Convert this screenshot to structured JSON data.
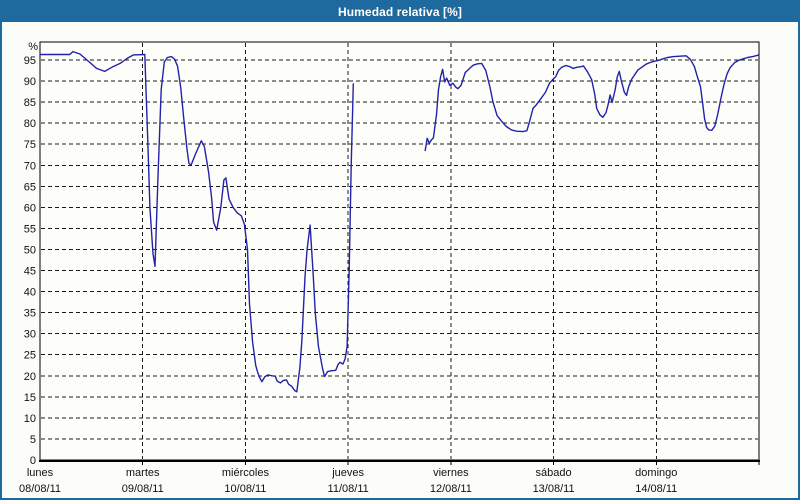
{
  "header": {
    "title": "Humedad relativa [%]"
  },
  "colors": {
    "header_bg": "#1e6a9e",
    "frame_border": "#1e6a9e",
    "grid": "#1a1a1a",
    "axis": "#000000",
    "label": "#111111",
    "plot_bg": "#fdfdfa",
    "page_bg": "#fcfcf8"
  },
  "chart_data": {
    "type": "line",
    "title": "Humedad relativa [%]",
    "ylabel": "%",
    "xlabel": "",
    "ylim": [
      0,
      99.5
    ],
    "y_ticks": [
      0,
      5,
      10,
      15,
      20,
      25,
      30,
      35,
      40,
      45,
      50,
      55,
      60,
      65,
      70,
      75,
      80,
      85,
      90,
      95
    ],
    "x_range_days": [
      0,
      7
    ],
    "grid": "dashed horizontal and vertical, black on white",
    "legend": "none",
    "line_color": "#2222aa",
    "x_days": [
      {
        "name": "lunes",
        "date": "08/08/11"
      },
      {
        "name": "martes",
        "date": "09/08/11"
      },
      {
        "name": "miércoles",
        "date": "10/08/11"
      },
      {
        "name": "jueves",
        "date": "11/08/11"
      },
      {
        "name": "viernes",
        "date": "12/08/11"
      },
      {
        "name": "sábado",
        "date": "13/08/11"
      },
      {
        "name": "domingo",
        "date": "14/08/11"
      }
    ],
    "series": [
      {
        "name": "Humedad relativa",
        "note": "x = days since lunes 08/08/11 00:00, y = %; gap (missing data) between day 3.05 and 3.75",
        "segments": [
          [
            [
              0,
              96.3
            ],
            [
              0.29,
              96.3
            ],
            [
              0.32,
              97
            ],
            [
              0.39,
              96.4
            ],
            [
              0.49,
              94.3
            ],
            [
              0.55,
              93
            ],
            [
              0.63,
              92.3
            ],
            [
              0.71,
              93.4
            ],
            [
              0.78,
              94.2
            ],
            [
              0.85,
              95.4
            ],
            [
              0.91,
              96.2
            ],
            [
              1.02,
              96.3
            ],
            [
              1.05,
              75
            ],
            [
              1.07,
              60
            ],
            [
              1.1,
              49
            ],
            [
              1.12,
              46
            ],
            [
              1.15,
              68
            ],
            [
              1.18,
              88
            ],
            [
              1.21,
              94.5
            ],
            [
              1.24,
              95.6
            ],
            [
              1.28,
              95.8
            ],
            [
              1.31,
              95.2
            ],
            [
              1.34,
              93.5
            ],
            [
              1.37,
              88.5
            ],
            [
              1.4,
              81
            ],
            [
              1.43,
              74
            ],
            [
              1.45,
              70.5
            ],
            [
              1.47,
              70
            ],
            [
              1.52,
              73
            ],
            [
              1.57,
              75.8
            ],
            [
              1.6,
              74.5
            ],
            [
              1.64,
              68.5
            ],
            [
              1.67,
              62.5
            ],
            [
              1.69,
              56.5
            ],
            [
              1.72,
              54.6
            ],
            [
              1.76,
              60
            ],
            [
              1.79,
              66.5
            ],
            [
              1.81,
              67
            ],
            [
              1.84,
              62
            ],
            [
              1.88,
              60
            ],
            [
              1.92,
              58.7
            ],
            [
              1.96,
              58
            ],
            [
              1.99,
              56
            ],
            [
              2.02,
              50
            ],
            [
              2.04,
              37
            ],
            [
              2.07,
              28
            ],
            [
              2.1,
              22.5
            ],
            [
              2.12,
              20.7
            ],
            [
              2.14,
              19.5
            ],
            [
              2.16,
              18.6
            ],
            [
              2.19,
              19.8
            ],
            [
              2.22,
              20.2
            ],
            [
              2.26,
              20
            ],
            [
              2.29,
              19.9
            ],
            [
              2.31,
              18.7
            ],
            [
              2.34,
              18.3
            ],
            [
              2.37,
              18.9
            ],
            [
              2.4,
              19
            ],
            [
              2.42,
              18
            ],
            [
              2.45,
              17.5
            ],
            [
              2.48,
              16.5
            ],
            [
              2.5,
              16.2
            ],
            [
              2.53,
              22
            ],
            [
              2.55,
              28.5
            ],
            [
              2.58,
              43.5
            ],
            [
              2.6,
              50
            ],
            [
              2.63,
              55.8
            ],
            [
              2.66,
              44
            ],
            [
              2.68,
              34.9
            ],
            [
              2.71,
              27
            ],
            [
              2.75,
              21.8
            ],
            [
              2.77,
              19.8
            ],
            [
              2.8,
              21
            ],
            [
              2.84,
              21.2
            ],
            [
              2.88,
              21.3
            ],
            [
              2.9,
              22.6
            ],
            [
              2.92,
              23.2
            ],
            [
              2.95,
              22.8
            ],
            [
              2.97,
              24
            ],
            [
              2.99,
              27
            ],
            [
              3.01,
              45
            ],
            [
              3.03,
              70
            ],
            [
              3.05,
              89.3
            ]
          ],
          [
            [
              3.75,
              73.5
            ],
            [
              3.77,
              76.4
            ],
            [
              3.79,
              75.2
            ],
            [
              3.81,
              76
            ],
            [
              3.83,
              76.5
            ],
            [
              3.86,
              82
            ],
            [
              3.88,
              88
            ],
            [
              3.9,
              91
            ],
            [
              3.92,
              92.8
            ],
            [
              3.94,
              89.8
            ],
            [
              3.96,
              90.7
            ],
            [
              3.99,
              89
            ],
            [
              4.02,
              89.5
            ],
            [
              4.05,
              88.5
            ],
            [
              4.07,
              88.2
            ],
            [
              4.1,
              89
            ],
            [
              4.14,
              92
            ],
            [
              4.19,
              93.2
            ],
            [
              4.22,
              93.8
            ],
            [
              4.26,
              94.1
            ],
            [
              4.3,
              94.2
            ],
            [
              4.34,
              92.5
            ],
            [
              4.38,
              88.6
            ],
            [
              4.41,
              85
            ],
            [
              4.45,
              81.8
            ],
            [
              4.5,
              80.3
            ],
            [
              4.54,
              79.2
            ],
            [
              4.59,
              78.4
            ],
            [
              4.64,
              78.1
            ],
            [
              4.7,
              78
            ],
            [
              4.74,
              78.2
            ],
            [
              4.77,
              80.7
            ],
            [
              4.8,
              83.5
            ],
            [
              4.83,
              84.3
            ],
            [
              4.87,
              85.6
            ],
            [
              4.92,
              87.3
            ],
            [
              4.96,
              89.5
            ],
            [
              4.99,
              90.3
            ],
            [
              5.02,
              91
            ],
            [
              5.05,
              92.6
            ],
            [
              5.08,
              93.3
            ],
            [
              5.12,
              93.7
            ],
            [
              5.16,
              93.4
            ],
            [
              5.19,
              93
            ],
            [
              5.23,
              93.3
            ],
            [
              5.27,
              93.4
            ],
            [
              5.29,
              93.6
            ],
            [
              5.33,
              92.2
            ],
            [
              5.37,
              90.4
            ],
            [
              5.4,
              86.9
            ],
            [
              5.42,
              83.5
            ],
            [
              5.45,
              82
            ],
            [
              5.48,
              81.4
            ],
            [
              5.51,
              82.5
            ],
            [
              5.53,
              84.3
            ],
            [
              5.55,
              86.7
            ],
            [
              5.57,
              84.9
            ],
            [
              5.6,
              88
            ],
            [
              5.62,
              91
            ],
            [
              5.64,
              92.3
            ],
            [
              5.66,
              90
            ],
            [
              5.69,
              87.3
            ],
            [
              5.71,
              86.6
            ],
            [
              5.73,
              88.6
            ],
            [
              5.76,
              90.4
            ],
            [
              5.79,
              91.5
            ],
            [
              5.82,
              92.6
            ],
            [
              5.86,
              93.3
            ],
            [
              5.9,
              94
            ],
            [
              5.94,
              94.4
            ],
            [
              5.98,
              94.7
            ],
            [
              6.02,
              94.9
            ],
            [
              6.07,
              95.3
            ],
            [
              6.11,
              95.6
            ],
            [
              6.17,
              95.8
            ],
            [
              6.23,
              95.9
            ],
            [
              6.29,
              96
            ],
            [
              6.33,
              95.2
            ],
            [
              6.37,
              93.5
            ],
            [
              6.4,
              91
            ],
            [
              6.43,
              88.6
            ],
            [
              6.45,
              85
            ],
            [
              6.47,
              81
            ],
            [
              6.49,
              79
            ],
            [
              6.51,
              78.4
            ],
            [
              6.54,
              78.3
            ],
            [
              6.57,
              79.3
            ],
            [
              6.6,
              82.3
            ],
            [
              6.63,
              86
            ],
            [
              6.66,
              89.3
            ],
            [
              6.69,
              91.8
            ],
            [
              6.72,
              93.2
            ],
            [
              6.76,
              94.3
            ],
            [
              6.8,
              94.9
            ],
            [
              6.85,
              95.3
            ],
            [
              6.89,
              95.6
            ],
            [
              6.94,
              95.8
            ],
            [
              7,
              96.2
            ]
          ]
        ]
      }
    ]
  }
}
